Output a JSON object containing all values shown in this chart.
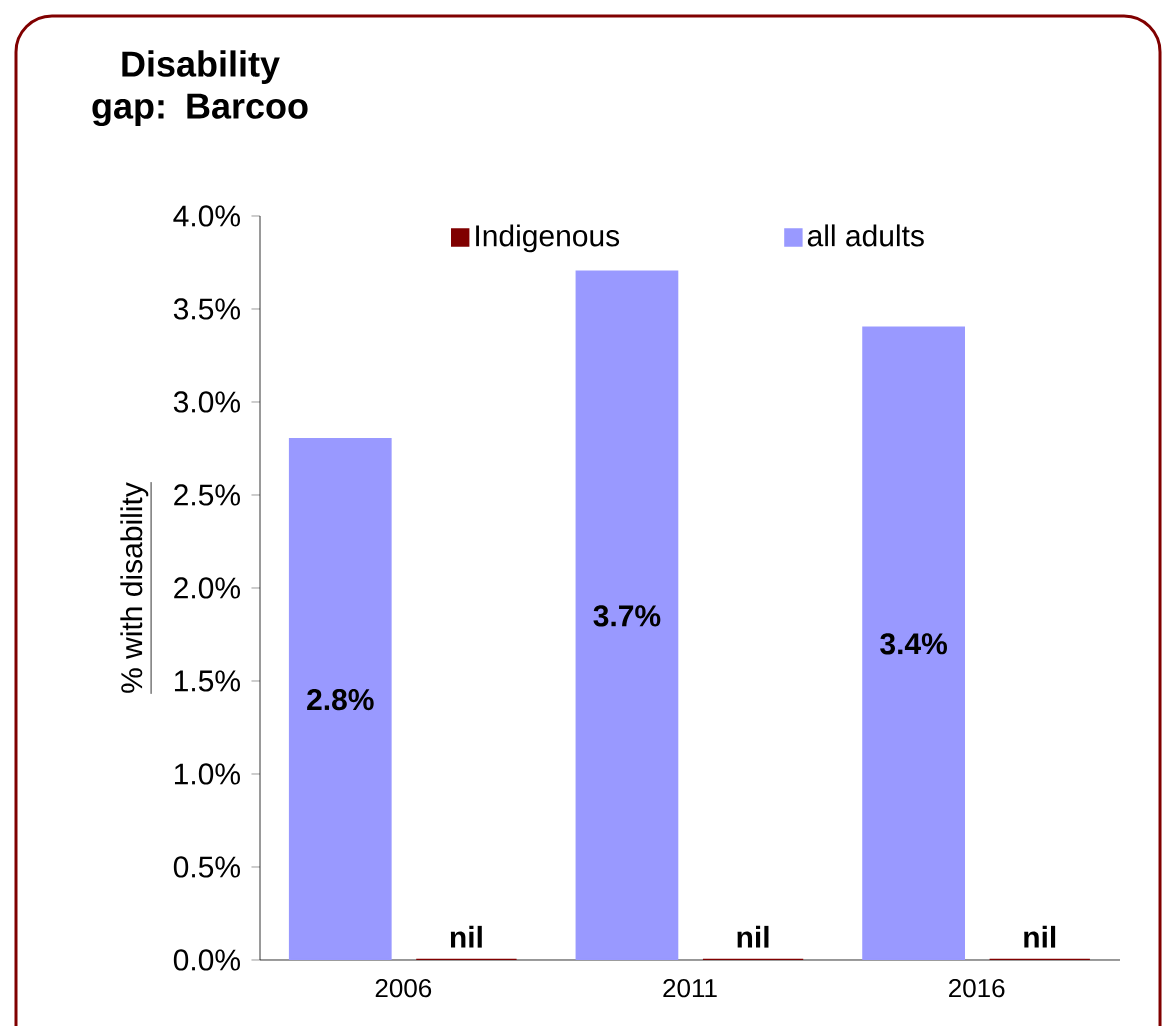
{
  "chart_data": {
    "type": "bar",
    "title": "Disability gap: Barcoo",
    "ylabel": "% with disability",
    "categories": [
      "2006",
      "2011",
      "2016"
    ],
    "series": [
      {
        "name": "all adults",
        "color": "#9999ff",
        "values": [
          2.8,
          3.7,
          3.4
        ],
        "value_labels": [
          "2.8%",
          "3.7%",
          "3.4%"
        ]
      },
      {
        "name": "Indigenous",
        "color": "#800000",
        "values": [
          0,
          0,
          0
        ],
        "value_labels": [
          "nil",
          "nil",
          "nil"
        ]
      }
    ],
    "ylim": [
      0,
      4
    ],
    "yticks": [
      {
        "value": 0,
        "label": "0.0%"
      },
      {
        "value": 0.5,
        "label": "0.5%"
      },
      {
        "value": 1,
        "label": "1.0%"
      },
      {
        "value": 1.5,
        "label": "1.5%"
      },
      {
        "value": 2,
        "label": "2.0%"
      },
      {
        "value": 2.5,
        "label": "2.5%"
      },
      {
        "value": 3,
        "label": "3.0%"
      },
      {
        "value": 3.5,
        "label": "3.5%"
      },
      {
        "value": 4,
        "label": "4.0%"
      }
    ],
    "grid": false,
    "legend": "top"
  }
}
